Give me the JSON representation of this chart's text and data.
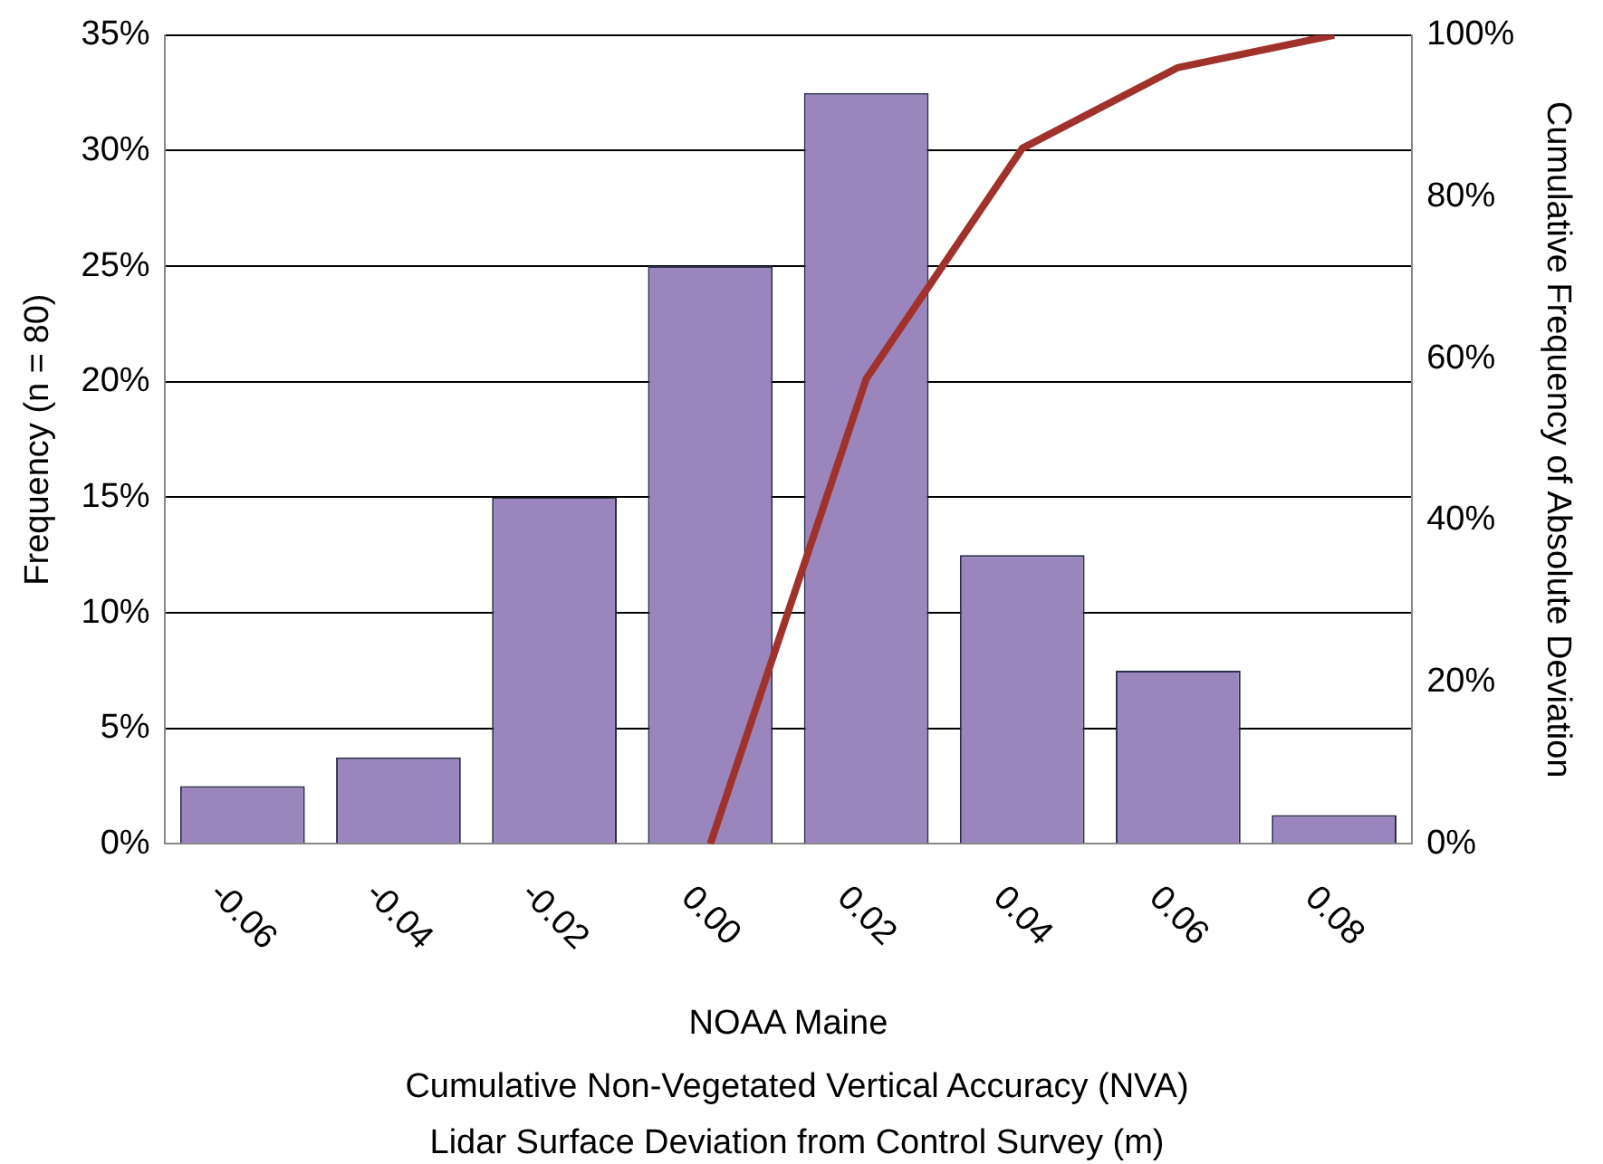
{
  "chart_data": {
    "type": "bar",
    "xlabel": "NOAA Maine",
    "ylabel": "Frequency (n = 80)",
    "y2label": "Cumulative Frequency of Absolute Deviation",
    "categories": [
      "-0.06",
      "-0.04",
      "-0.02",
      "0.00",
      "0.02",
      "0.04",
      "0.06",
      "0.08"
    ],
    "series": [
      {
        "color": "#9a86bd",
        "values": [
          2.5,
          3.75,
          15,
          25,
          32.5,
          12.5,
          7.5,
          1.25
        ]
      },
      {
        "type": "line",
        "axis": "y2",
        "color": "#a0312b",
        "values": [
          null,
          null,
          null,
          0,
          57.5,
          86,
          96,
          100
        ]
      }
    ],
    "ylim": [
      0,
      35
    ],
    "yticks": [
      {
        "value": 0,
        "label": "0%"
      },
      {
        "value": 5,
        "label": "5%"
      },
      {
        "value": 10,
        "label": "10%"
      },
      {
        "value": 15,
        "label": "15%"
      },
      {
        "value": 20,
        "label": "20%"
      },
      {
        "value": 25,
        "label": "25%"
      },
      {
        "value": 30,
        "label": "30%"
      },
      {
        "value": 35,
        "label": "35%"
      }
    ],
    "y2lim": [
      0,
      100
    ],
    "y2ticks": [
      {
        "value": 0,
        "label": "0%"
      },
      {
        "value": 20,
        "label": "20%"
      },
      {
        "value": 40,
        "label": "40%"
      },
      {
        "value": 60,
        "label": "60%"
      },
      {
        "value": 80,
        "label": "80%"
      },
      {
        "value": 100,
        "label": "100%"
      }
    ],
    "grid": "y",
    "legend": false,
    "marker": "none",
    "line_style": "solid",
    "annotations": [
      "Cumulative Non-Vegetated Vertical Accuracy (NVA)",
      "Lidar Surface Deviation from Control Survey (m)"
    ]
  }
}
